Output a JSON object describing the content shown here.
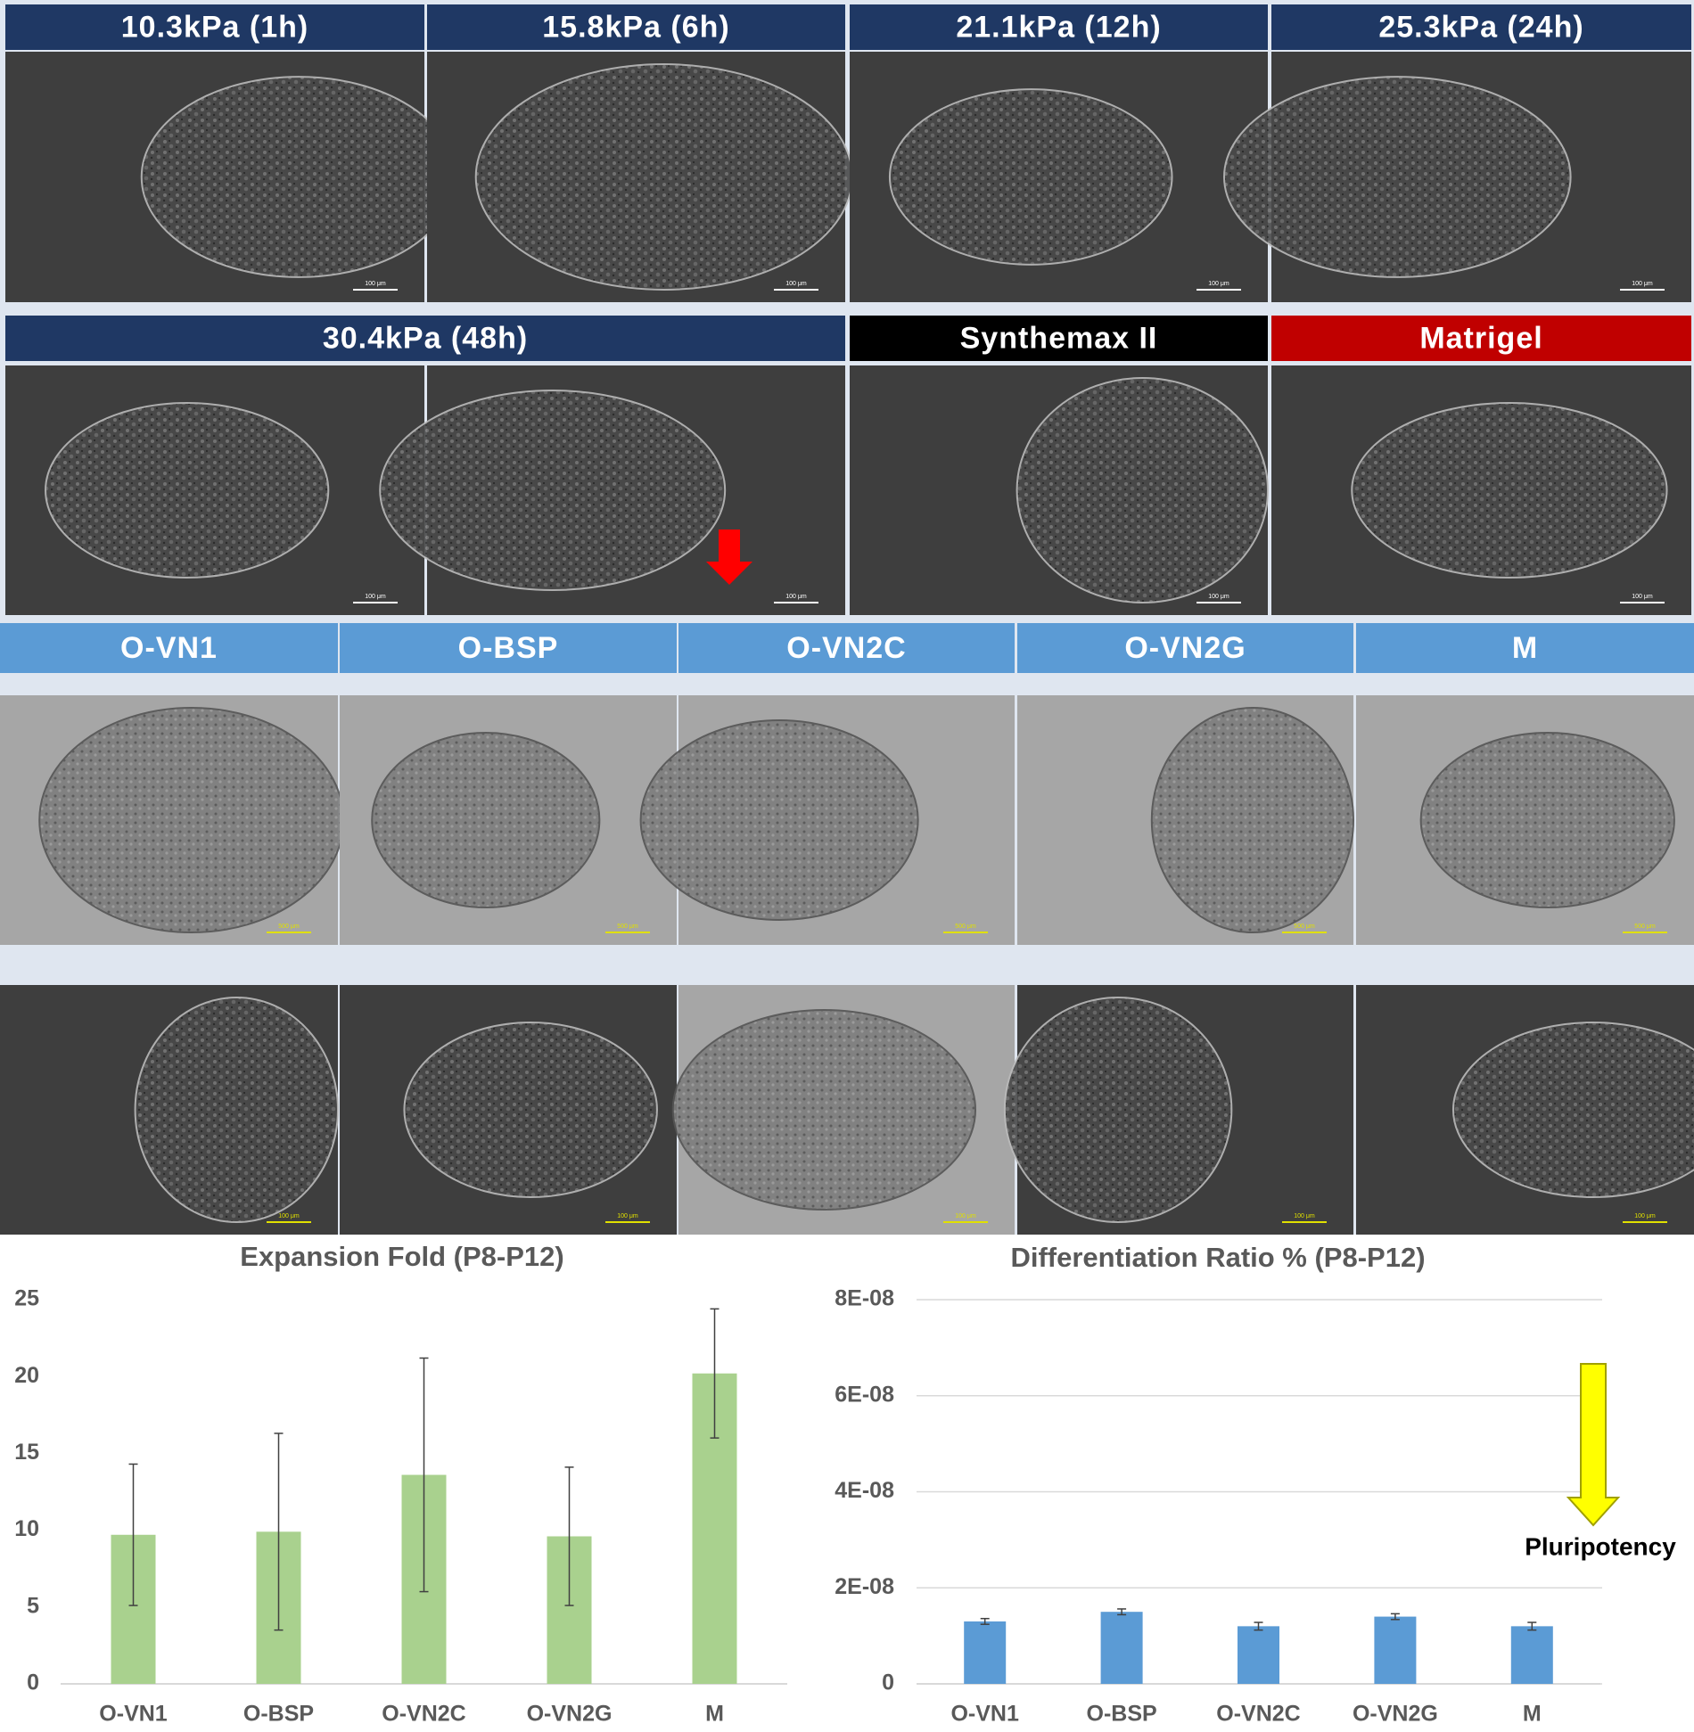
{
  "panels": {
    "row1": {
      "headers": [
        "10.3kPa (1h)",
        "15.8kPa (6h)",
        "21.1kPa (12h)",
        "25.3kPa (24h)"
      ],
      "scale_bars": [
        "100 μm",
        "100 μm",
        "100 μm",
        "100 μm"
      ]
    },
    "row2": {
      "headers": [
        "30.4kPa (48h)",
        "Synthemax II",
        "Matrigel"
      ],
      "scale_bars": [
        "100 μm",
        "100 μm",
        "100 μm",
        "100 μm"
      ]
    },
    "row3": {
      "headers": [
        "O-VN1",
        "O-BSP",
        "O-VN2C",
        "O-VN2G",
        "M"
      ],
      "scale_bars": [
        "500 μm",
        "500 μm",
        "500 μm",
        "500 μm",
        "500 μm"
      ]
    },
    "row4": {
      "scale_bars": [
        "100 μm",
        "100 μm",
        "100 μm",
        "100 μm",
        "100 μm"
      ]
    }
  },
  "chart_data": [
    {
      "type": "bar",
      "title": "Expansion Fold (P8-P12)",
      "categories": [
        "O-VN1",
        "O-BSP",
        "O-VN2C",
        "O-VN2G",
        "M"
      ],
      "values": [
        9.7,
        9.9,
        13.6,
        9.6,
        20.2
      ],
      "errors": [
        4.6,
        6.4,
        7.6,
        4.5,
        4.2
      ],
      "color": "#a9d18e",
      "ylim": [
        0,
        25
      ],
      "yticks": [
        0,
        5,
        10,
        15,
        20,
        25
      ],
      "grid": false
    },
    {
      "type": "bar",
      "title": "Differentiation Ratio % (P8-P12)",
      "categories": [
        "O-VN1",
        "O-BSP",
        "O-VN2C",
        "O-VN2G",
        "M"
      ],
      "values": [
        1.3e-08,
        1.5e-08,
        1.2e-08,
        1.4e-08,
        1.2e-08
      ],
      "errors": [
        6e-10,
        6e-10,
        8e-10,
        6e-10,
        8e-10
      ],
      "color": "#5b9bd5",
      "ylim": [
        0,
        8e-08
      ],
      "yticks": [
        0,
        {
          "value": 2e-08,
          "label": "2E-08"
        },
        {
          "value": 4e-08,
          "label": "4E-08"
        },
        {
          "value": 6e-08,
          "label": "6E-08"
        },
        {
          "value": 8e-08,
          "label": "8E-08"
        }
      ],
      "grid": true,
      "annotation": "Pluripotency"
    }
  ]
}
